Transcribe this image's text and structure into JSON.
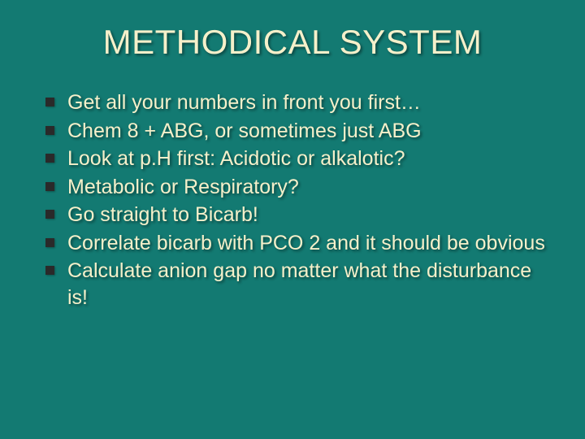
{
  "background_color": "#137a72",
  "text_color": "#f5f0ca",
  "bullet_marker_color": "#2a2a2a",
  "title_fontsize": 42,
  "body_fontsize": 25,
  "title": "METHODICAL SYSTEM",
  "bullets": [
    "Get all your numbers in front you first…",
    "Chem 8 + ABG, or sometimes just ABG",
    "Look at p.H first:  Acidotic or alkalotic?",
    "Metabolic or Respiratory?",
    "Go straight to Bicarb!",
    "Correlate bicarb with PCO 2 and it should be obvious",
    "Calculate anion gap no matter what the disturbance is!"
  ]
}
